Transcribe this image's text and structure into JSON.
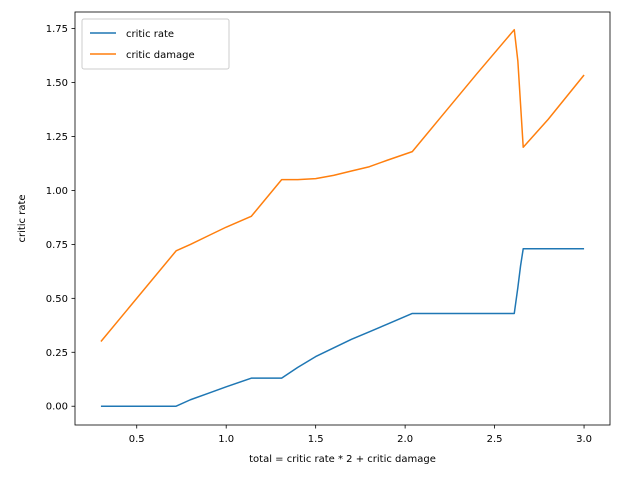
{
  "chart_data": {
    "type": "line",
    "title": "",
    "xlabel": "total = critic rate * 2 + critic damage",
    "ylabel": "critic rate",
    "xlim": [
      0.155,
      3.145
    ],
    "ylim": [
      -0.087,
      1.827
    ],
    "xticks": [
      0.5,
      1.0,
      1.5,
      2.0,
      2.5,
      3.0
    ],
    "xtick_labels": [
      "0.5",
      "1.0",
      "1.5",
      "2.0",
      "2.5",
      "3.0"
    ],
    "yticks": [
      0.0,
      0.25,
      0.5,
      0.75,
      1.0,
      1.25,
      1.5,
      1.75
    ],
    "ytick_labels": [
      "0.00",
      "0.25",
      "0.50",
      "0.75",
      "1.00",
      "1.25",
      "1.50",
      "1.75"
    ],
    "grid": false,
    "legend_position": "upper-left",
    "series": [
      {
        "name": "critic rate",
        "color": "#1f77b4",
        "x": [
          0.3,
          0.72,
          0.8,
          0.9,
          1.0,
          1.14,
          1.31,
          1.4,
          1.5,
          1.6,
          1.7,
          1.8,
          1.9,
          2.04,
          2.2,
          2.4,
          2.61,
          2.63,
          2.645,
          2.66,
          2.7,
          3.0
        ],
        "y": [
          0.0,
          0.0,
          0.03,
          0.06,
          0.09,
          0.13,
          0.13,
          0.18,
          0.23,
          0.27,
          0.31,
          0.345,
          0.38,
          0.43,
          0.43,
          0.43,
          0.43,
          0.55,
          0.65,
          0.73,
          0.73,
          0.73
        ]
      },
      {
        "name": "critic damage",
        "color": "#ff7f0e",
        "x": [
          0.3,
          0.72,
          0.8,
          0.9,
          1.0,
          1.14,
          1.31,
          1.4,
          1.5,
          1.6,
          1.7,
          1.8,
          1.9,
          2.04,
          2.2,
          2.4,
          2.61,
          2.63,
          2.645,
          2.66,
          2.8,
          3.0
        ],
        "y": [
          0.3,
          0.72,
          0.75,
          0.79,
          0.83,
          0.88,
          1.05,
          1.05,
          1.055,
          1.07,
          1.09,
          1.11,
          1.14,
          1.18,
          1.34,
          1.54,
          1.745,
          1.6,
          1.4,
          1.2,
          1.33,
          1.535
        ]
      }
    ]
  }
}
